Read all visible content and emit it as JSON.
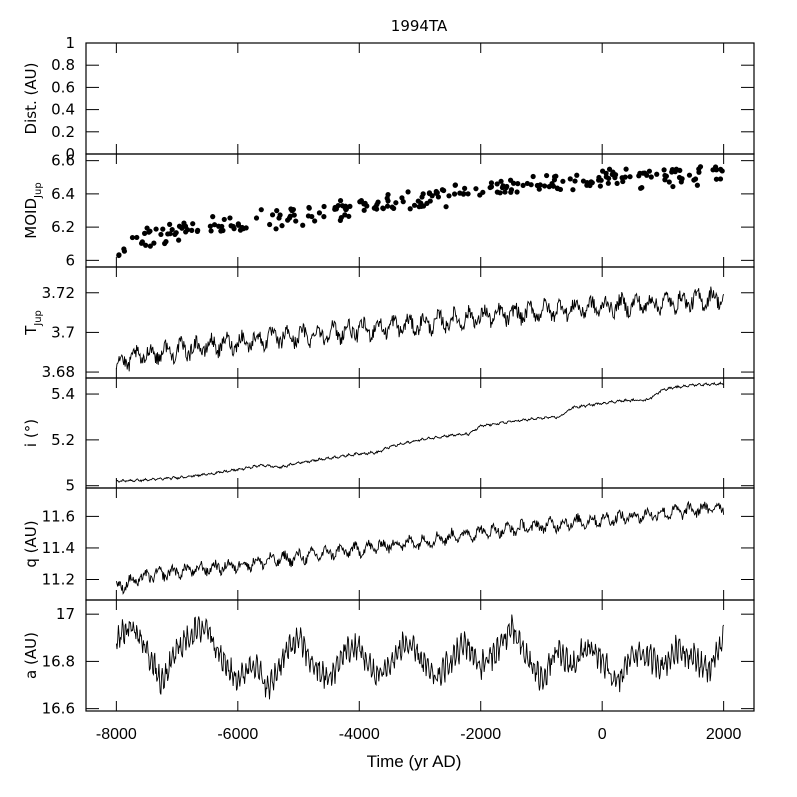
{
  "chart_data": {
    "type": "line",
    "title": "1994TA",
    "xlabel": "Time (yr AD)",
    "xlim": [
      -8500,
      2500
    ],
    "xticks": [
      -8000,
      -6000,
      -4000,
      -2000,
      0,
      2000
    ],
    "xtick_labels": [
      "-8000",
      "-6000",
      "-4000",
      "-2000",
      "0",
      "2000"
    ],
    "panels": [
      {
        "id": "dist",
        "ylabel": "Dist. (AU)",
        "ylim": [
          0,
          1
        ],
        "yticks": [
          0,
          0.2,
          0.4,
          0.6,
          0.8,
          1
        ],
        "ytick_labels": [
          "0",
          "0.2",
          "0.4",
          "0.6",
          "0.8",
          "1"
        ],
        "type": "empty",
        "series": []
      },
      {
        "id": "moid",
        "ylabel": "MOID",
        "ylabel_sub": "Jup",
        "ylim": [
          5.96,
          6.64
        ],
        "yticks": [
          6,
          6.2,
          6.4,
          6.6
        ],
        "ytick_labels": [
          "6",
          "6.2",
          "6.4",
          "6.6"
        ],
        "type": "scatter",
        "series": [
          {
            "x": [
              -8000,
              -7750,
              -7500,
              -7250,
              -7000,
              -6750,
              -6500,
              -6250,
              -6000,
              -5750,
              -5500,
              -5250,
              -5000,
              -4750,
              -4500,
              -4250,
              -4000,
              -3750,
              -3500,
              -3250,
              -3000,
              -2750,
              -2500,
              -2250,
              -2000,
              -1750,
              -1500,
              -1250,
              -1000,
              -750,
              -500,
              -250,
              0,
              250,
              500,
              750,
              1000,
              1250,
              1500,
              1750,
              2000
            ],
            "y": [
              6.05,
              6.1,
              6.13,
              6.16,
              6.17,
              6.19,
              6.2,
              6.21,
              6.22,
              6.23,
              6.25,
              6.26,
              6.27,
              6.28,
              6.29,
              6.31,
              6.32,
              6.33,
              6.34,
              6.36,
              6.37,
              6.38,
              6.39,
              6.41,
              6.42,
              6.43,
              6.44,
              6.45,
              6.46,
              6.46,
              6.47,
              6.48,
              6.49,
              6.49,
              6.5,
              6.5,
              6.51,
              6.51,
              6.51,
              6.52,
              6.53
            ],
            "spread": 0.05
          }
        ]
      },
      {
        "id": "tjup",
        "ylabel": "T",
        "ylabel_sub": "Jup",
        "ylim": [
          3.677,
          3.733
        ],
        "yticks": [
          3.68,
          3.7,
          3.72
        ],
        "ytick_labels": [
          "3.68",
          "3.7",
          "3.72"
        ],
        "type": "line",
        "series": [
          {
            "x": [
              -8000,
              -7500,
              -7000,
              -6500,
              -6000,
              -5500,
              -5000,
              -4500,
              -4000,
              -3500,
              -3000,
              -2500,
              -2000,
              -1500,
              -1000,
              -500,
              0,
              500,
              1000,
              1500,
              2000
            ],
            "y": [
              3.684,
              3.689,
              3.691,
              3.693,
              3.695,
              3.697,
              3.698,
              3.7,
              3.701,
              3.703,
              3.704,
              3.706,
              3.708,
              3.709,
              3.711,
              3.712,
              3.713,
              3.714,
              3.715,
              3.716,
              3.718
            ],
            "amplitude": 0.006,
            "period": 250
          }
        ]
      },
      {
        "id": "inc",
        "ylabel": "i (°)",
        "ylim": [
          4.99,
          5.47
        ],
        "yticks": [
          5,
          5.2,
          5.4
        ],
        "ytick_labels": [
          "5",
          "5.2",
          "5.4"
        ],
        "type": "line",
        "series": [
          {
            "x": [
              -8000,
              -7500,
              -7000,
              -6500,
              -6000,
              -5600,
              -5300,
              -5000,
              -4500,
              -4000,
              -3700,
              -3500,
              -3000,
              -2500,
              -2200,
              -2000,
              -1500,
              -1000,
              -700,
              -500,
              0,
              300,
              750,
              1000,
              1500,
              2000
            ],
            "y": [
              5.02,
              5.025,
              5.035,
              5.05,
              5.07,
              5.09,
              5.08,
              5.1,
              5.12,
              5.14,
              5.145,
              5.17,
              5.2,
              5.22,
              5.225,
              5.26,
              5.28,
              5.295,
              5.3,
              5.34,
              5.36,
              5.37,
              5.375,
              5.42,
              5.44,
              5.445
            ],
            "amplitude": 0.006,
            "period": 120
          }
        ]
      },
      {
        "id": "q",
        "ylabel": "q (AU)",
        "ylim": [
          11.07,
          11.78
        ],
        "yticks": [
          11.2,
          11.4,
          11.6
        ],
        "ytick_labels": [
          "11.2",
          "11.4",
          "11.6"
        ],
        "type": "line",
        "series": [
          {
            "x": [
              -8000,
              -7500,
              -7000,
              -6500,
              -6000,
              -5500,
              -5000,
              -4500,
              -4000,
              -3500,
              -3000,
              -2500,
              -2000,
              -1500,
              -1000,
              -500,
              0,
              500,
              1000,
              1500,
              2000
            ],
            "y": [
              11.15,
              11.22,
              11.25,
              11.27,
              11.29,
              11.32,
              11.34,
              11.37,
              11.39,
              11.42,
              11.44,
              11.47,
              11.5,
              11.52,
              11.54,
              11.56,
              11.58,
              11.6,
              11.62,
              11.64,
              11.66
            ],
            "amplitude": 0.05,
            "period": 230
          }
        ]
      },
      {
        "id": "a",
        "ylabel": "a (AU)",
        "ylim": [
          16.59,
          17.06
        ],
        "yticks": [
          16.6,
          16.8,
          17
        ],
        "ytick_labels": [
          "16.6",
          "16.8",
          "17"
        ],
        "type": "line",
        "series": [
          {
            "x": [
              -8000,
              -7750,
              -7500,
              -7250,
              -7000,
              -6750,
              -6500,
              -6250,
              -6000,
              -5750,
              -5500,
              -5250,
              -5000,
              -4750,
              -4500,
              -4250,
              -4000,
              -3750,
              -3500,
              -3250,
              -3000,
              -2750,
              -2500,
              -2250,
              -2000,
              -1750,
              -1500,
              -1250,
              -1000,
              -750,
              -500,
              -250,
              0,
              250,
              500,
              750,
              1000,
              1250,
              1500,
              1750,
              2000
            ],
            "y": [
              16.9,
              16.95,
              16.85,
              16.7,
              16.85,
              16.92,
              16.95,
              16.8,
              16.72,
              16.8,
              16.68,
              16.82,
              16.9,
              16.78,
              16.72,
              16.84,
              16.86,
              16.74,
              16.78,
              16.88,
              16.82,
              16.72,
              16.8,
              16.88,
              16.78,
              16.84,
              16.94,
              16.82,
              16.72,
              16.84,
              16.78,
              16.86,
              16.8,
              16.7,
              16.84,
              16.82,
              16.78,
              16.86,
              16.82,
              16.76,
              16.9
            ],
            "amplitude": 0.06,
            "period": 60
          }
        ]
      }
    ]
  }
}
